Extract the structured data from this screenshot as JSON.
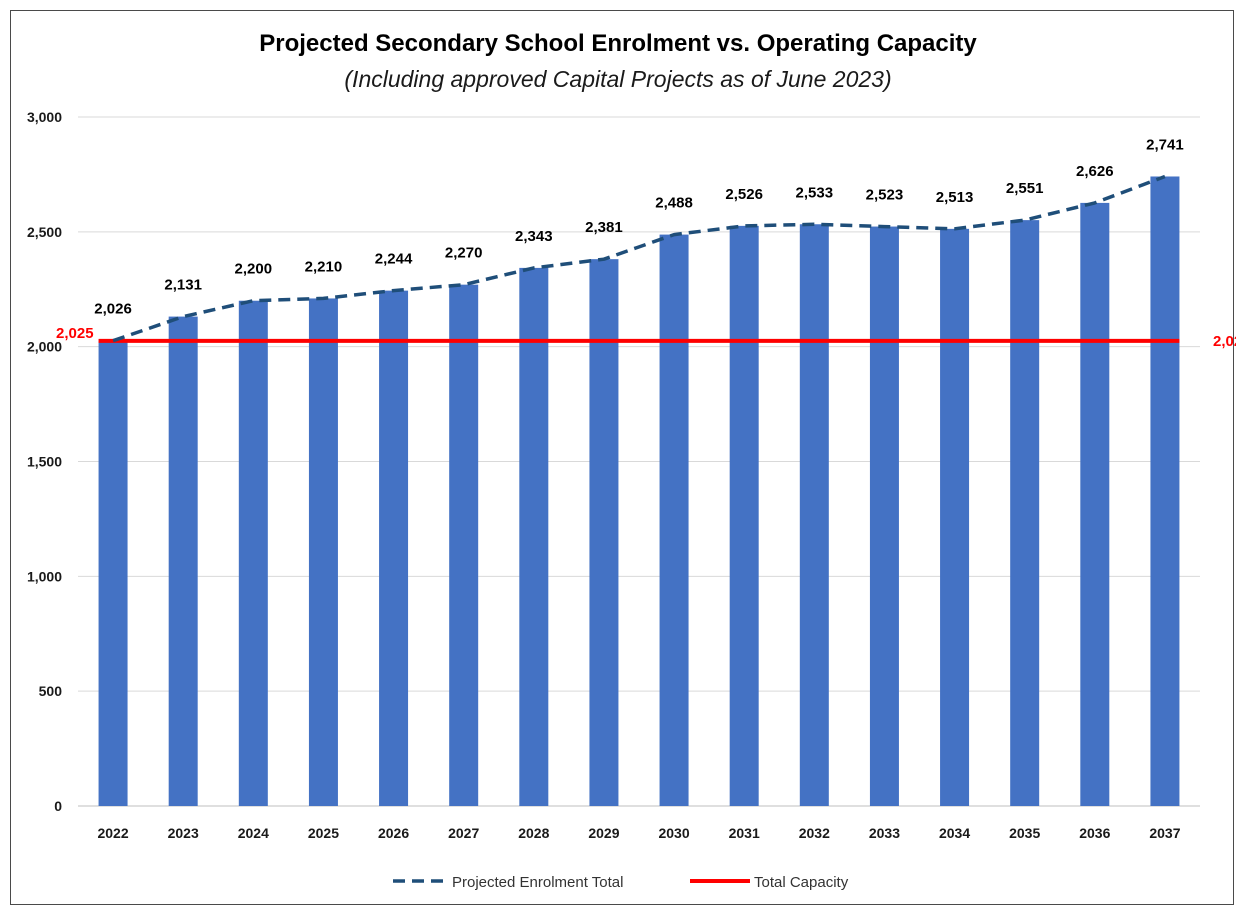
{
  "title": "Projected Secondary School Enrolment vs. Operating Capacity",
  "subtitle": "(Including approved Capital Projects as of June 2023)",
  "chart_data": {
    "type": "bar",
    "categories": [
      "2022",
      "2023",
      "2024",
      "2025",
      "2026",
      "2027",
      "2028",
      "2029",
      "2030",
      "2031",
      "2032",
      "2033",
      "2034",
      "2035",
      "2036",
      "2037"
    ],
    "series": [
      {
        "name": "Projected Enrolment Total",
        "type": "bar+dashed-line",
        "color": "#4472C4",
        "line_color": "#1F4E79",
        "values": [
          2026,
          2131,
          2200,
          2210,
          2244,
          2270,
          2343,
          2381,
          2488,
          2526,
          2533,
          2523,
          2513,
          2551,
          2626,
          2741
        ],
        "data_labels": [
          "2,026",
          "2,131",
          "2,200",
          "2,210",
          "2,244",
          "2,270",
          "2,343",
          "2,381",
          "2,488",
          "2,526",
          "2,533",
          "2,523",
          "2,513",
          "2,551",
          "2,626",
          "2,741"
        ]
      },
      {
        "name": "Total Capacity",
        "type": "line",
        "color": "#FF0000",
        "value": 2025,
        "label": "2,025"
      }
    ],
    "ylim": [
      0,
      3000
    ],
    "yticks": [
      0,
      500,
      1000,
      1500,
      2000,
      2500,
      3000
    ],
    "ytick_labels": [
      "0",
      "500",
      "1,000",
      "1,500",
      "2,000",
      "2,500",
      "3,000"
    ],
    "grid": true,
    "legend_position": "bottom"
  }
}
